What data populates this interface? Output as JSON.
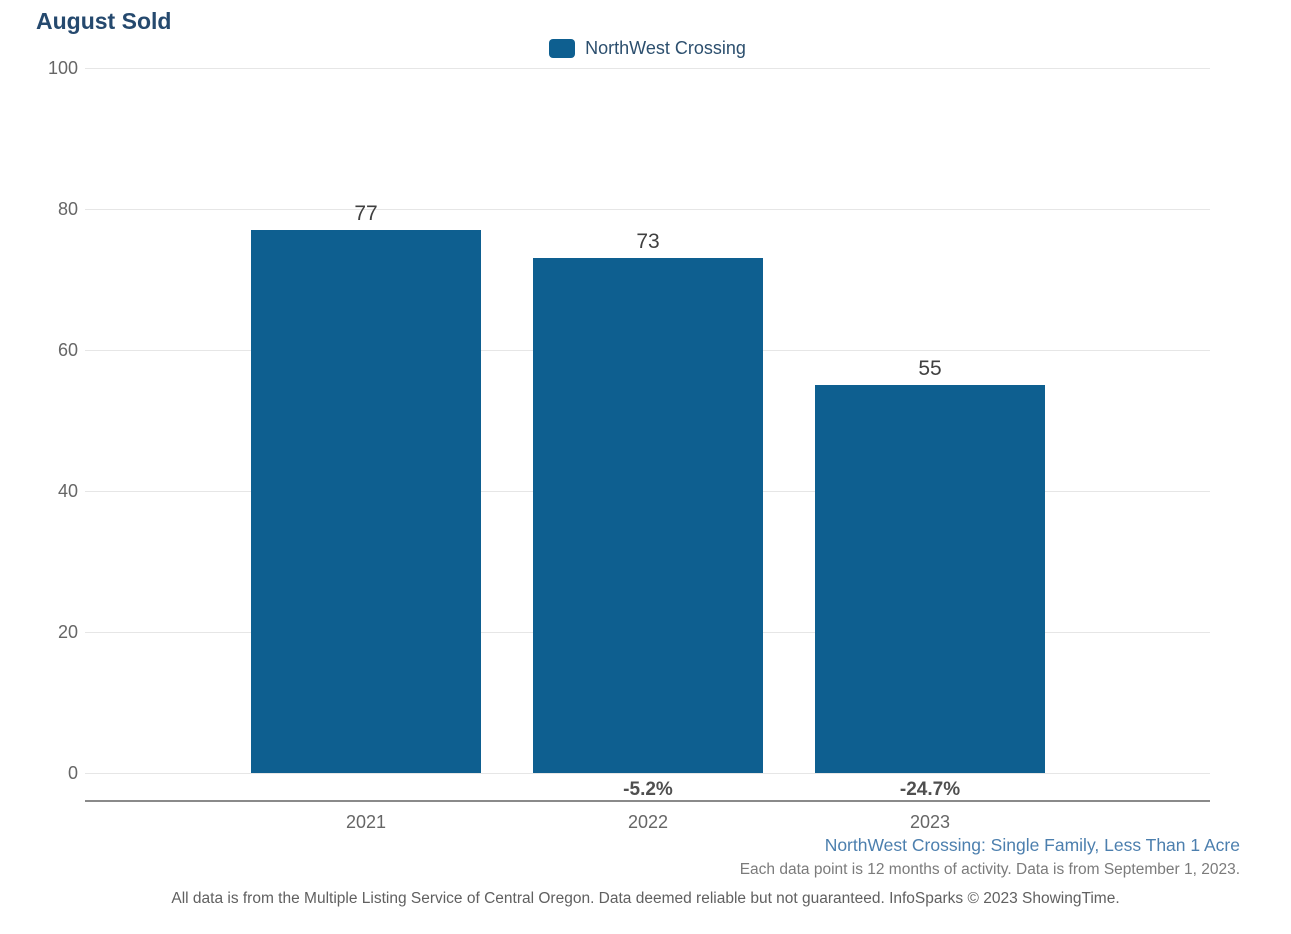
{
  "title": "August Sold",
  "legend": {
    "label": "NorthWest Crossing",
    "swatch_color": "#0e5f90"
  },
  "chart_data": {
    "type": "bar",
    "title": "August Sold",
    "categories": [
      "2021",
      "2022",
      "2023"
    ],
    "series": [
      {
        "name": "NorthWest Crossing",
        "values": [
          77,
          73,
          55
        ]
      }
    ],
    "value_labels": [
      "77",
      "73",
      "55"
    ],
    "change_labels": [
      "",
      "-5.2%",
      "-24.7%"
    ],
    "ylim": [
      0,
      100
    ],
    "yticks": [
      0,
      20,
      40,
      60,
      80,
      100
    ],
    "grid": true,
    "legend_position": "top-center",
    "bar_color": "#0e5f90"
  },
  "footer": {
    "segment_label": "NorthWest Crossing: Single Family, Less Than 1 Acre",
    "data_note": "Each data point is 12 months of activity. Data is from September 1, 2023.",
    "disclaimer": "All data is from the Multiple Listing Service of Central Oregon. Data deemed reliable but not guaranteed. InfoSparks © 2023 ShowingTime."
  },
  "colors": {
    "bar": "#0e5f90",
    "title": "#25496e",
    "legend_text": "#2c4f6e",
    "value_label": "#404040",
    "axis_label": "#666666",
    "gridline": "#e6e6e6",
    "axis_line": "#8a8a8a",
    "footer_blue": "#4c7fae",
    "footer_gray": "#7b7b7b"
  }
}
